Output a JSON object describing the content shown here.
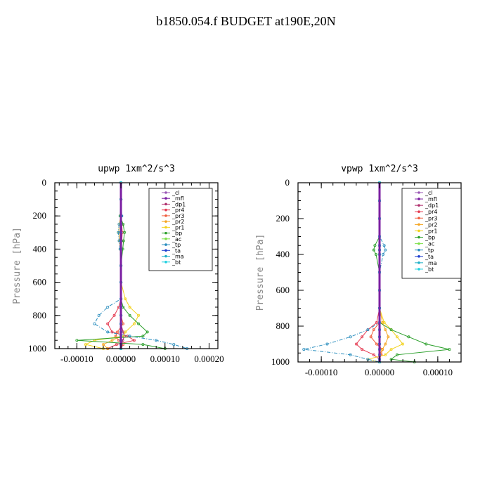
{
  "title": "b1850.054.f  BUDGET at190E,20N",
  "legend_items": [
    {
      "name": "_cl",
      "color": "#9b59b6"
    },
    {
      "name": "_mfl",
      "color": "#7b1fa2"
    },
    {
      "name": "_dp1",
      "color": "#b0306e"
    },
    {
      "name": "_pr4",
      "color": "#e53950"
    },
    {
      "name": "_pr3",
      "color": "#f06040"
    },
    {
      "name": "_pr2",
      "color": "#f5a623"
    },
    {
      "name": "_pr1",
      "color": "#f2d21e"
    },
    {
      "name": "_bp",
      "color": "#2ca02c"
    },
    {
      "name": "_ac",
      "color": "#7ee04a"
    },
    {
      "name": "_tp",
      "color": "#2c8fbf"
    },
    {
      "name": "_ta",
      "color": "#1f3fd0"
    },
    {
      "name": "_ma",
      "color": "#20b0c8"
    },
    {
      "name": "_bt",
      "color": "#20d0e0"
    }
  ],
  "chart_data": [
    {
      "type": "line",
      "title": "upwp   1xm^2/s^3",
      "ylabel": "Pressure [hPa]",
      "xlabel": "",
      "xlim": [
        -0.00015,
        0.00022
      ],
      "ylim": [
        1000,
        0
      ],
      "xticks": [
        -0.0001,
        0.0,
        0.0001,
        0.0002
      ],
      "xtick_labels": [
        "-0.00010",
        "0.00000",
        "0.00010",
        "0.00020"
      ],
      "yticks": [
        0,
        200,
        400,
        600,
        800,
        1000
      ],
      "ytick_labels": [
        "0",
        "200",
        "400",
        "600",
        "800",
        "1000"
      ],
      "legend": "top-right",
      "y": [
        0,
        100,
        200,
        250,
        300,
        350,
        400,
        500,
        600,
        700,
        750,
        800,
        850,
        900,
        925,
        950,
        975,
        1000
      ],
      "series": [
        {
          "name": "_cl",
          "values": [
            0,
            0,
            0,
            0,
            0,
            0,
            0,
            0,
            0,
            0,
            0,
            0,
            0,
            0,
            0,
            0,
            0,
            0
          ]
        },
        {
          "name": "_mfl",
          "values": [
            0,
            0,
            1e-06,
            1e-06,
            1e-06,
            1e-06,
            0,
            0,
            0,
            0,
            0,
            0,
            0,
            0,
            0,
            0,
            0,
            0
          ]
        },
        {
          "name": "_dp1",
          "values": [
            0,
            0,
            0,
            0,
            0,
            0,
            0,
            0,
            0,
            0,
            0,
            0,
            0,
            5e-06,
            8e-06,
            4e-06,
            2e-06,
            0
          ]
        },
        {
          "name": "_pr4",
          "values": [
            0,
            0,
            0,
            2e-06,
            3e-06,
            2e-06,
            1e-06,
            0,
            0,
            0,
            -5e-06,
            -1.5e-05,
            -3e-05,
            -2e-05,
            1.5e-05,
            3e-05,
            -1e-05,
            -3e-05
          ]
        },
        {
          "name": "_pr3",
          "values": [
            0,
            0,
            0,
            0,
            0,
            0,
            0,
            0,
            0,
            0,
            0,
            0,
            5e-06,
            -8e-06,
            -1.2e-05,
            -5e-06,
            5e-06,
            0
          ]
        },
        {
          "name": "_pr2",
          "values": [
            0,
            0,
            0,
            0,
            0,
            0,
            0,
            0,
            0,
            0,
            0,
            0,
            0,
            0,
            0,
            -2e-05,
            -4e-05,
            -3e-05
          ]
        },
        {
          "name": "_pr1",
          "values": [
            0,
            0,
            0,
            -4e-06,
            -5e-06,
            -3e-06,
            -2e-06,
            0,
            0,
            1e-05,
            2e-05,
            4e-05,
            3e-05,
            1e-05,
            5e-06,
            -6e-05,
            -8e-05,
            -4e-05
          ]
        },
        {
          "name": "_bp",
          "values": [
            0,
            0,
            -2e-06,
            5e-06,
            8e-06,
            6e-06,
            4e-06,
            0,
            0,
            0,
            5e-06,
            2e-05,
            4e-05,
            6e-05,
            5e-05,
            -0.0001,
            5e-05,
            0.0001
          ]
        },
        {
          "name": "_ac",
          "values": [
            0,
            0,
            0,
            0,
            0,
            0,
            0,
            0,
            0,
            0,
            0,
            0,
            0,
            0,
            0,
            0,
            0,
            0
          ]
        },
        {
          "name": "_tp",
          "values": [
            0,
            0,
            2e-06,
            -4e-06,
            -6e-06,
            -4e-06,
            -2e-06,
            0,
            0,
            0,
            -3e-05,
            -5e-05,
            -6e-05,
            -3e-05,
            2e-05,
            8e-05,
            0.00012,
            0.00015
          ]
        },
        {
          "name": "_ta",
          "values": [
            0,
            0,
            0,
            0,
            0,
            0,
            0,
            0,
            0,
            0,
            0,
            0,
            0,
            0,
            0,
            0,
            0,
            0
          ]
        },
        {
          "name": "_ma",
          "values": [
            0,
            0,
            0,
            0,
            0,
            0,
            0,
            0,
            0,
            0,
            0,
            0,
            0,
            0,
            0,
            0,
            0,
            0
          ]
        },
        {
          "name": "_bt",
          "values": [
            0,
            0,
            0,
            0,
            0,
            0,
            0,
            0,
            0,
            0,
            0,
            0,
            0,
            0,
            0,
            0,
            0,
            0
          ]
        }
      ]
    },
    {
      "type": "line",
      "title": "vpwp   1xm^2/s^3",
      "ylabel": "Pressure [hPa]",
      "xlabel": "",
      "xlim": [
        -0.00014,
        0.00014
      ],
      "ylim": [
        1000,
        0
      ],
      "xticks": [
        -0.0001,
        0.0,
        0.0001
      ],
      "xtick_labels": [
        "-0.00010",
        "0.00000",
        "0.00010"
      ],
      "yticks": [
        0,
        200,
        400,
        600,
        800,
        1000
      ],
      "ytick_labels": [
        "0",
        "200",
        "400",
        "600",
        "800",
        "1000"
      ],
      "legend": "top-right",
      "y": [
        0,
        100,
        200,
        300,
        350,
        375,
        400,
        500,
        600,
        700,
        780,
        820,
        860,
        900,
        930,
        960,
        985,
        1000
      ],
      "series": [
        {
          "name": "_cl",
          "values": [
            0,
            0,
            0,
            0,
            0,
            0,
            0,
            0,
            0,
            0,
            0,
            0,
            0,
            0,
            0,
            0,
            0,
            0
          ]
        },
        {
          "name": "_mfl",
          "values": [
            0,
            0,
            0,
            0,
            0,
            0,
            0,
            0,
            0,
            0,
            0,
            0,
            0,
            0,
            0,
            0,
            0,
            0
          ]
        },
        {
          "name": "_dp1",
          "values": [
            0,
            0,
            0,
            0,
            0,
            0,
            0,
            0,
            0,
            0,
            0,
            0,
            0,
            0,
            0,
            0,
            0,
            0
          ]
        },
        {
          "name": "_pr4",
          "values": [
            0,
            0,
            0,
            0,
            0,
            0,
            0,
            0,
            0,
            0,
            -5e-06,
            -2e-05,
            -3e-05,
            -4e-05,
            -3e-05,
            -1e-05,
            0,
            0
          ]
        },
        {
          "name": "_pr3",
          "values": [
            0,
            0,
            0,
            0,
            0,
            0,
            0,
            0,
            0,
            0,
            0,
            -1e-05,
            -1.5e-05,
            -5e-06,
            5e-06,
            3e-06,
            0,
            0
          ]
        },
        {
          "name": "_pr2",
          "values": [
            0,
            0,
            0,
            0,
            0,
            0,
            0,
            0,
            0,
            0,
            5e-06,
            1e-05,
            1.5e-05,
            1e-05,
            5e-06,
            0,
            0,
            0
          ]
        },
        {
          "name": "_pr1",
          "values": [
            0,
            0,
            0,
            0,
            0,
            0,
            0,
            0,
            0,
            0,
            8e-06,
            2e-05,
            3e-05,
            4e-05,
            2e-05,
            1e-05,
            -2e-05,
            0
          ]
        },
        {
          "name": "_bp",
          "values": [
            0,
            0,
            0,
            0,
            -8e-06,
            -1e-05,
            -6e-06,
            0,
            0,
            0,
            0,
            2e-05,
            5e-05,
            8e-05,
            0.00012,
            3e-05,
            2e-05,
            6e-05
          ]
        },
        {
          "name": "_ac",
          "values": [
            0,
            0,
            0,
            0,
            0,
            0,
            0,
            0,
            0,
            0,
            0,
            0,
            0,
            0,
            0,
            0,
            0,
            0
          ]
        },
        {
          "name": "_tp",
          "values": [
            0,
            0,
            0,
            0,
            8e-06,
            1e-05,
            6e-06,
            0,
            0,
            0,
            0,
            -2e-05,
            -5e-05,
            -9e-05,
            -0.00013,
            -5e-05,
            -2e-05,
            0
          ]
        },
        {
          "name": "_ta",
          "values": [
            0,
            0,
            0,
            0,
            0,
            0,
            0,
            0,
            0,
            0,
            0,
            0,
            0,
            0,
            0,
            0,
            0,
            0
          ]
        },
        {
          "name": "_ma",
          "values": [
            0,
            0,
            0,
            0,
            0,
            0,
            0,
            0,
            0,
            0,
            0,
            0,
            0,
            0,
            0,
            0,
            0,
            0
          ]
        },
        {
          "name": "_bt",
          "values": [
            0,
            0,
            0,
            0,
            0,
            0,
            0,
            0,
            0,
            0,
            0,
            0,
            0,
            0,
            0,
            0,
            0,
            0
          ]
        }
      ]
    }
  ]
}
